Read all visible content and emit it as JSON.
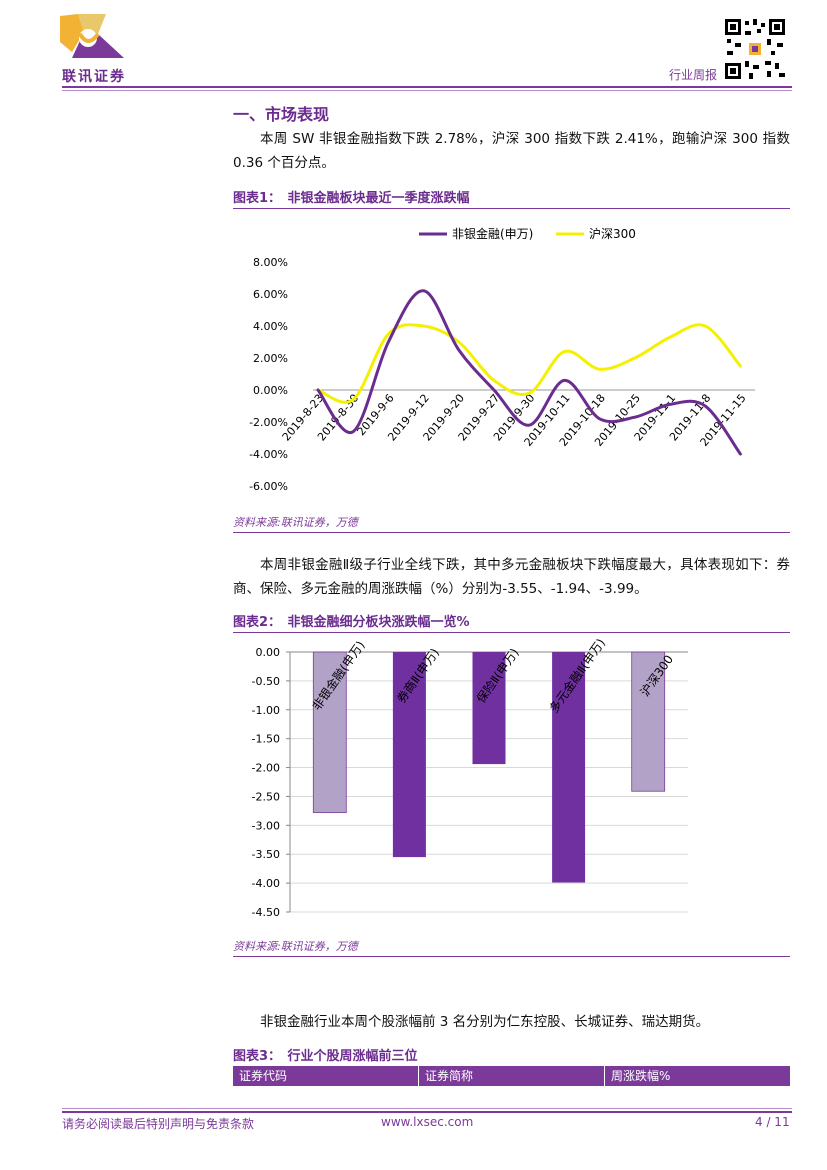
{
  "header": {
    "company_name": "联讯证券",
    "report_type": "行业周报"
  },
  "section": {
    "title": "一、市场表现",
    "intro": "本周 SW 非银金融指数下跌 2.78%，沪深 300 指数下跌 2.41%，跑输沪深 300 指数 0.36 个百分点。"
  },
  "figure1": {
    "title": "图表1：　非银金融板块最近一季度涨跌幅",
    "source": "资料来源:联讯证券，万德"
  },
  "para2": "本周非银金融Ⅱ级子行业全线下跌，其中多元金融板块下跌幅度最大，具体表现如下：券商、保险、多元金融的周涨跌幅（%）分别为-3.55、-1.94、-3.99。",
  "figure2": {
    "title": "图表2：　非银金融细分板块涨跌幅一览%",
    "source": "资料来源:联讯证券，万德"
  },
  "para3": "非银金融行业本周个股涨幅前 3 名分别为仁东控股、长城证券、瑞达期货。",
  "figure3": {
    "title": "图表3：　行业个股周涨幅前三位",
    "columns": [
      "证券代码",
      "证券简称",
      "周涨跌幅%"
    ]
  },
  "footer": {
    "disclaimer": "请务必阅读最后特别声明与免责条款",
    "website": "www.lxsec.com",
    "page": "4 / 11"
  },
  "colors": {
    "brand": "#7b3a9a",
    "series1": "#6b2c8f",
    "series2": "#f5f000",
    "bar_dark": "#7030a0",
    "bar_light": "#b3a2c7"
  },
  "chart_data": [
    {
      "type": "line",
      "x": [
        "2019-8-23",
        "2019-8-30",
        "2019-9-6",
        "2019-9-12",
        "2019-9-20",
        "2019-9-27",
        "2019-9-30",
        "2019-10-11",
        "2019-10-18",
        "2019-10-25",
        "2019-11-1",
        "2019-11-8",
        "2019-11-15"
      ],
      "series": [
        {
          "name": "非银金融(申万)",
          "values": [
            0.0,
            -2.6,
            3.0,
            6.2,
            2.5,
            0.0,
            -2.2,
            0.6,
            -1.8,
            -1.7,
            -0.9,
            -1.0,
            -4.0
          ]
        },
        {
          "name": "沪深300",
          "values": [
            0.0,
            -0.6,
            3.5,
            4.0,
            3.0,
            0.6,
            -0.2,
            2.4,
            1.3,
            2.0,
            3.3,
            4.0,
            1.5
          ]
        }
      ],
      "ylim": [
        -6,
        8
      ],
      "yticks": [
        "8.00%",
        "6.00%",
        "4.00%",
        "2.00%",
        "0.00%",
        "-2.00%",
        "-4.00%",
        "-6.00%"
      ],
      "legend": "top",
      "title": "",
      "xlabel": "",
      "ylabel": ""
    },
    {
      "type": "bar",
      "categories": [
        "非银金融(申万)",
        "券商Ⅱ(申万)",
        "保险Ⅱ(申万)",
        "多元金融Ⅱ(申万)",
        "沪深300"
      ],
      "values": [
        -2.78,
        -3.55,
        -1.94,
        -3.99,
        -2.41
      ],
      "ylim": [
        -4.5,
        0
      ],
      "yticks": [
        "0.00",
        "-0.50",
        "-1.00",
        "-1.50",
        "-2.00",
        "-2.50",
        "-3.00",
        "-3.50",
        "-4.00",
        "-4.50"
      ],
      "title": "",
      "xlabel": "",
      "ylabel": ""
    }
  ]
}
